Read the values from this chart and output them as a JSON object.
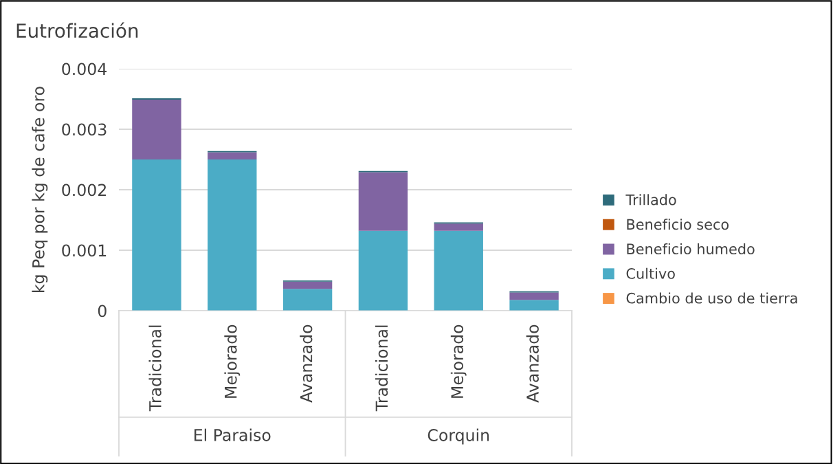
{
  "chart_data": {
    "type": "bar",
    "stacked": true,
    "title": "Eutrofización",
    "ylabel": "kg Peq por kg de cafe oro",
    "categories": [
      "Tradicional",
      "Mejorado",
      "Avanzado",
      "Tradicional",
      "Mejorado",
      "Avanzado"
    ],
    "annotations": [
      "El Paraiso",
      "Corquin"
    ],
    "series": [
      {
        "name": "Cambio de uso de tierra",
        "color": "#f79646",
        "values": [
          0,
          0,
          0,
          0,
          0,
          0
        ]
      },
      {
        "name": "Cultivo",
        "color": "#4bacc6",
        "values": [
          0.0025,
          0.0025,
          0.00036,
          0.00132,
          0.00132,
          0.00018
        ]
      },
      {
        "name": "Beneficio humedo",
        "color": "#8064a2",
        "values": [
          0.00099,
          0.00012,
          0.00012,
          0.00097,
          0.00012,
          0.00012
        ]
      },
      {
        "name": "Beneficio seco",
        "color": "#c0580f",
        "values": [
          0,
          0,
          0,
          0,
          0,
          0
        ]
      },
      {
        "name": "Trillado",
        "color": "#2e6b7b",
        "values": [
          2e-05,
          2e-05,
          2e-05,
          2e-05,
          2e-05,
          2e-05
        ]
      }
    ],
    "ylim": [
      0,
      0.004
    ],
    "yticks": [
      0,
      0.001,
      0.002,
      0.003,
      0.004
    ],
    "grid": "y",
    "legend": "right"
  }
}
